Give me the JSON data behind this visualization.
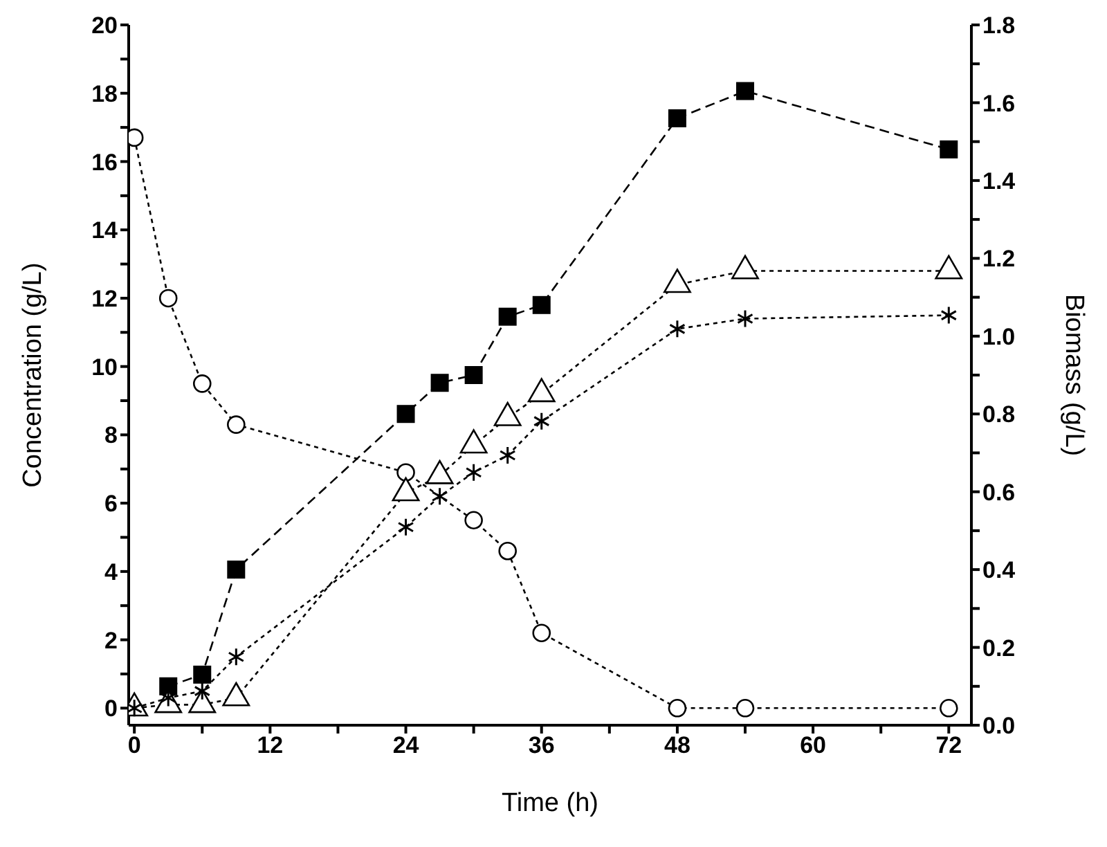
{
  "chart_data": {
    "type": "line",
    "xlabel": "Time (h)",
    "ylabel": "Concentration (g/L)",
    "y2label": "Biomass (g/L)",
    "x": [
      0,
      3,
      6,
      9,
      24,
      27,
      30,
      33,
      36,
      48,
      54,
      72
    ],
    "series": [
      {
        "color": "#000000",
        "marker": "square",
        "line_style": "dashed",
        "axis": "y2",
        "values": [
          null,
          0.1,
          0.13,
          0.4,
          0.8,
          0.88,
          0.9,
          1.05,
          1.08,
          1.56,
          1.63,
          1.48
        ]
      },
      {
        "color": "#000000",
        "marker": "circle",
        "line_style": "dotted",
        "values": [
          16.7,
          12.0,
          9.5,
          8.3,
          6.9,
          null,
          5.5,
          4.6,
          2.2,
          0,
          0,
          0
        ]
      },
      {
        "color": "#000000",
        "marker": "triangle",
        "line_style": "dotted",
        "values": [
          0,
          0.1,
          0.1,
          0.3,
          6.3,
          6.8,
          7.7,
          8.5,
          9.2,
          12.4,
          12.8,
          12.8
        ]
      },
      {
        "color": "#000000",
        "marker": "cross",
        "line_style": "dotted",
        "values": [
          0,
          0.3,
          0.5,
          1.5,
          5.3,
          6.2,
          6.9,
          7.4,
          8.4,
          11.1,
          11.4,
          11.5
        ]
      }
    ],
    "xlim": [
      -0.5,
      74
    ],
    "xticks": [
      0,
      {
        "value": 6,
        "label": null
      },
      12,
      {
        "value": 18,
        "label": null
      },
      24,
      {
        "value": 30,
        "label": null
      },
      36,
      {
        "value": 42,
        "label": null
      },
      48,
      {
        "value": 54,
        "label": null
      },
      60,
      {
        "value": 66,
        "label": null
      },
      72
    ],
    "ylim": [
      -0.5,
      20
    ],
    "yticks": [
      0,
      {
        "value": 1,
        "label": null
      },
      2,
      {
        "value": 3,
        "label": null
      },
      4,
      {
        "value": 5,
        "label": null
      },
      6,
      {
        "value": 7,
        "label": null
      },
      8,
      {
        "value": 9,
        "label": null
      },
      10,
      {
        "value": 11,
        "label": null
      },
      12,
      {
        "value": 13,
        "label": null
      },
      14,
      {
        "value": 15,
        "label": null
      },
      16,
      {
        "value": 17,
        "label": null
      },
      18,
      {
        "value": 19,
        "label": null
      },
      20
    ],
    "y2lim": [
      0,
      1.8
    ],
    "y2ticks": [
      {
        "value": 0,
        "label": "0.0"
      },
      {
        "value": 0.1,
        "label": null
      },
      0.2,
      {
        "value": 0.3,
        "label": null
      },
      0.4,
      {
        "value": 0.5,
        "label": null
      },
      0.6,
      {
        "value": 0.7,
        "label": null
      },
      0.8,
      {
        "value": 0.9,
        "label": null
      },
      {
        "value": 1,
        "label": "1.0"
      },
      {
        "value": 1.1,
        "label": null
      },
      1.2,
      {
        "value": 1.3,
        "label": null
      },
      1.4,
      {
        "value": 1.5,
        "label": null
      },
      1.6,
      {
        "value": 1.7,
        "label": null
      },
      1.8
    ]
  }
}
